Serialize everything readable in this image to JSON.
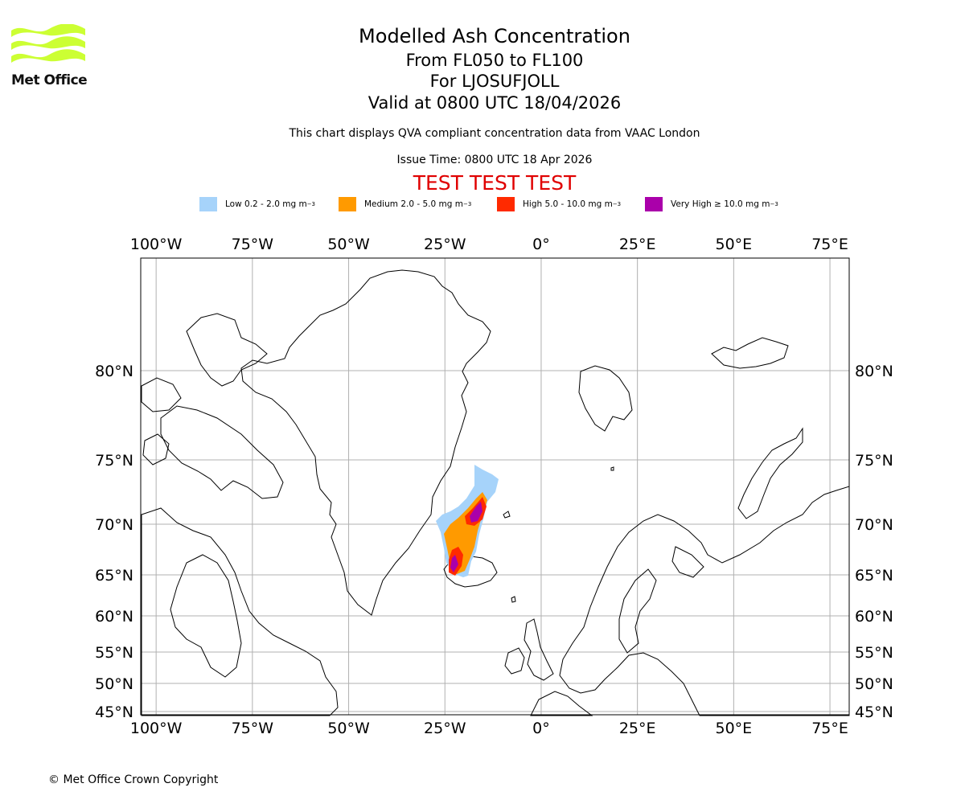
{
  "logo": {
    "text": "Met Office",
    "color": "#ccff33"
  },
  "header": {
    "title": "Modelled Ash Concentration",
    "levels": "From FL050 to FL100",
    "volcano": "For LJOSUFJOLL",
    "valid": "Valid at 0800 UTC 18/04/2026",
    "description": "This chart displays QVA compliant concentration data from VAAC London",
    "issue_time": "Issue Time: 0800 UTC 18 Apr 2026",
    "test_banner": "TEST TEST TEST"
  },
  "legend": [
    {
      "label": "Low 0.2 - 2.0 mg m",
      "unit_exp": "−3",
      "color": "#a6d3fa"
    },
    {
      "label": "Medium 2.0 - 5.0 mg m",
      "unit_exp": "−3",
      "color": "#ff9a00"
    },
    {
      "label": "High 5.0 - 10.0 mg m",
      "unit_exp": "−3",
      "color": "#ff2a00"
    },
    {
      "label": "Very High  ≥  10.0 mg m",
      "unit_exp": "−3",
      "color": "#aa00aa"
    }
  ],
  "map": {
    "longitude_labels": [
      "100°W",
      "75°W",
      "50°W",
      "25°W",
      "0°",
      "25°E",
      "50°E",
      "75°E"
    ],
    "longitude_values": [
      -100,
      -75,
      -50,
      -25,
      0,
      25,
      50,
      75
    ],
    "latitude_labels": [
      "80°N",
      "75°N",
      "70°N",
      "65°N",
      "60°N",
      "55°N",
      "50°N",
      "45°N"
    ],
    "latitude_values": [
      80,
      75,
      70,
      65,
      60,
      55,
      50,
      45
    ],
    "lon_range": [
      -104,
      80
    ],
    "gridline_color": "#b0b0b0"
  },
  "footer": {
    "copyright": "© Met Office Crown Copyright"
  }
}
